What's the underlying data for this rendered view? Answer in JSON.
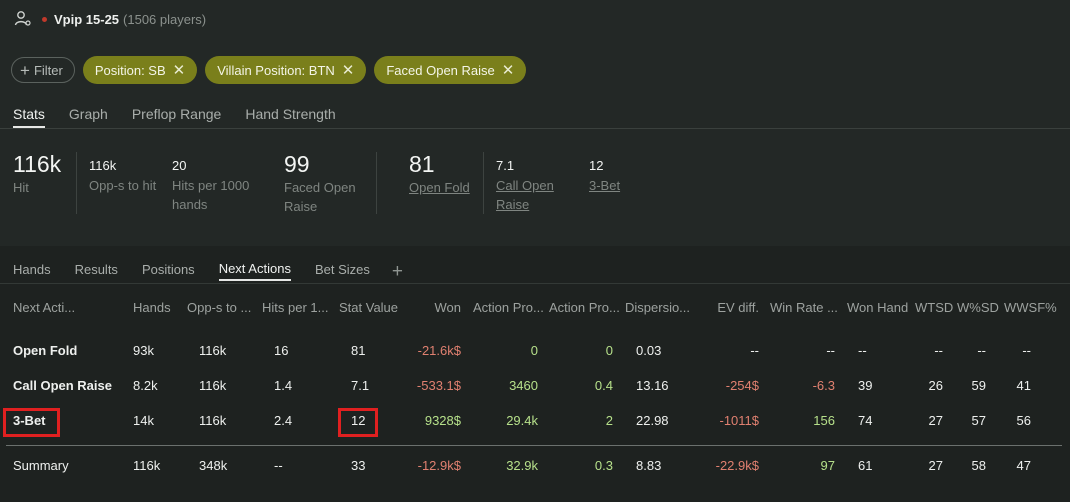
{
  "header": {
    "preset_name": "Vpip 15-25",
    "players": "(1506 players)"
  },
  "filters": {
    "add_label": "Filter",
    "chips": [
      "Position: SB",
      "Villain Position: BTN",
      "Faced Open Raise"
    ]
  },
  "main_tabs": [
    "Stats",
    "Graph",
    "Preflop Range",
    "Hand Strength"
  ],
  "stats": {
    "hit": {
      "value": "116k",
      "label": "Hit"
    },
    "opps": {
      "value": "116k",
      "label": "Opp-s to hit"
    },
    "hits_per": {
      "value": "20",
      "label1": "Hits per 1000",
      "label2": "hands"
    },
    "faced": {
      "value": "99",
      "label1": "Faced Open",
      "label2": "Raise"
    },
    "open_fold": {
      "value": "81",
      "label": "Open Fold"
    },
    "call_open": {
      "value": "7.1",
      "label1": "Call Open",
      "label2": "Raise"
    },
    "three_bet": {
      "value": "12",
      "label": "3-Bet"
    }
  },
  "sub_tabs": [
    "Hands",
    "Results",
    "Positions",
    "Next Actions",
    "Bet Sizes"
  ],
  "table": {
    "columns": [
      "Next Acti...",
      "Hands",
      "Opp-s to ...",
      "Hits per 1...",
      "Stat Value",
      "Won",
      "Action Pro...",
      "Action Pro...",
      "Dispersio...",
      "EV diff.",
      "Win Rate ...",
      "Won Hand",
      "WTSD",
      "W%SD",
      "WWSF%"
    ],
    "rows": [
      [
        "Open Fold",
        "93k",
        "116k",
        "16",
        "81",
        "-21.6k$",
        "0",
        "0",
        "0.03",
        "--",
        "--",
        "--",
        "--",
        "--",
        "--"
      ],
      [
        "Call Open Raise",
        "8.2k",
        "116k",
        "1.4",
        "7.1",
        "-533.1$",
        "3460",
        "0.4",
        "13.16",
        "-254$",
        "-6.3",
        "39",
        "26",
        "59",
        "41"
      ],
      [
        "3-Bet",
        "14k",
        "116k",
        "2.4",
        "12",
        "9328$",
        "29.4k",
        "2",
        "22.98",
        "-1011$",
        "156",
        "74",
        "27",
        "57",
        "56"
      ]
    ],
    "summary": [
      "Summary",
      "116k",
      "348k",
      "--",
      "33",
      "-12.9k$",
      "32.9k",
      "0.3",
      "8.83",
      "-22.9k$",
      "97",
      "61",
      "27",
      "58",
      "47"
    ]
  }
}
